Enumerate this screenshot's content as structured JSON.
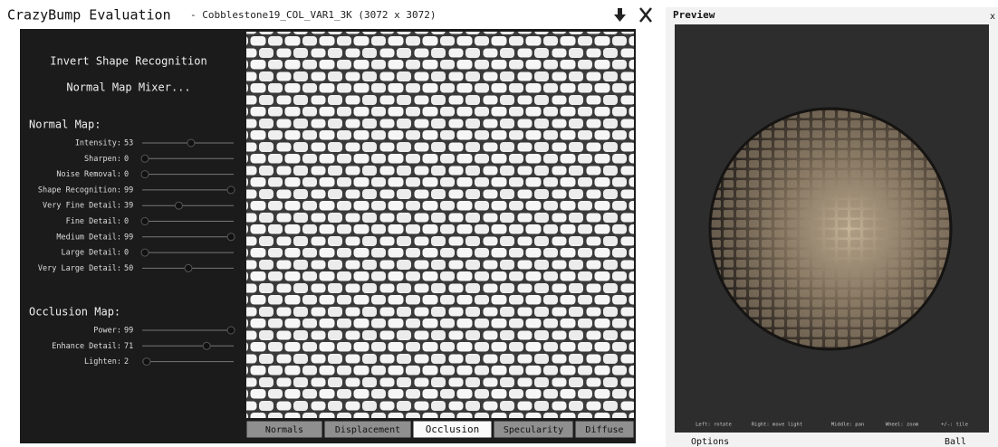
{
  "window": {
    "title": "CrazyBump Evaluation",
    "file": "- Cobblestone19_COL_VAR1_3K (3072 x 3072)"
  },
  "buttons": [
    "Invert Shape Recognition",
    "Normal Map Mixer..."
  ],
  "normal_map": {
    "title": "Normal Map:",
    "sliders": [
      {
        "label": "Intensity:",
        "value": 53
      },
      {
        "label": "Sharpen:",
        "value": 0
      },
      {
        "label": "Noise Removal:",
        "value": 0
      },
      {
        "label": "Shape Recognition:",
        "value": 99
      },
      {
        "label": "Very Fine Detail:",
        "value": 39
      },
      {
        "label": "Fine Detail:",
        "value": 0
      },
      {
        "label": "Medium Detail:",
        "value": 99
      },
      {
        "label": "Large Detail:",
        "value": 0
      },
      {
        "label": "Very Large Detail:",
        "value": 50
      }
    ]
  },
  "occlusion_map": {
    "title": "Occlusion Map:",
    "sliders": [
      {
        "label": "Power:",
        "value": 99
      },
      {
        "label": "Enhance Detail:",
        "value": 71
      },
      {
        "label": "Lighten:",
        "value": 2
      }
    ]
  },
  "tabs": [
    "Normals",
    "Displacement",
    "Occlusion",
    "Specularity",
    "Diffuse"
  ],
  "active_tab": 2,
  "preview": {
    "title": "Preview",
    "close": "x",
    "hints": [
      "Left: rotate",
      "Right: move light",
      "Middle: pan",
      "Wheel: zoom",
      "+/-: tile"
    ],
    "options": "Options",
    "mode": "Ball"
  }
}
